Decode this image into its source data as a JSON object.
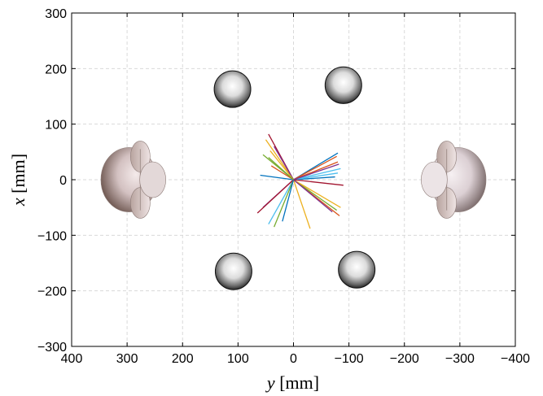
{
  "chart_data": {
    "type": "line",
    "xlabel": {
      "var": "y",
      "unit": " [mm]"
    },
    "ylabel": {
      "var": "x",
      "unit": " [mm]"
    },
    "xlim": [
      400,
      -400
    ],
    "ylim": [
      -300,
      300
    ],
    "x_reversed": true,
    "xticks": [
      400,
      300,
      200,
      100,
      0,
      -100,
      -200,
      -300,
      -400
    ],
    "xtick_labels": [
      "400",
      "300",
      "200",
      "100",
      "0",
      "−100",
      "−200",
      "−300",
      "−400"
    ],
    "yticks": [
      300,
      200,
      100,
      0,
      -100,
      -200,
      -300
    ],
    "ytick_labels": [
      "300",
      "200",
      "100",
      "0",
      "−100",
      "−200",
      "−300"
    ],
    "grid": true,
    "grid_style": "dashed",
    "spheres": [
      {
        "y": 110,
        "x": 163,
        "r": 33
      },
      {
        "y": -90,
        "x": 170,
        "r": 33
      },
      {
        "y": 108,
        "x": -165,
        "r": 33
      },
      {
        "y": -114,
        "x": -162,
        "r": 33
      }
    ],
    "heads": [
      {
        "name": "left-head",
        "center_y": 285,
        "center_x": 0,
        "facing": "right"
      },
      {
        "name": "right-head",
        "center_y": -285,
        "center_x": 0,
        "facing": "left"
      }
    ],
    "series_origin": {
      "y": 0,
      "x": 0
    },
    "series": [
      {
        "color": "#d95319",
        "y": -83,
        "x": -65
      },
      {
        "color": "#0072bd",
        "y": -80,
        "x": 48
      },
      {
        "color": "#edb120",
        "y": 50,
        "x": 72
      },
      {
        "color": "#7e2f8e",
        "y": 55,
        "x": -50
      },
      {
        "color": "#77ac30",
        "y": -78,
        "x": -55
      },
      {
        "color": "#4dbeee",
        "y": -85,
        "x": 20
      },
      {
        "color": "#a2142f",
        "y": 45,
        "x": 82
      },
      {
        "color": "#0072bd",
        "y": 60,
        "x": 8
      },
      {
        "color": "#d95319",
        "y": -80,
        "x": 32
      },
      {
        "color": "#edb120",
        "y": -30,
        "x": -88
      },
      {
        "color": "#7e2f8e",
        "y": 35,
        "x": 60
      },
      {
        "color": "#77ac30",
        "y": 55,
        "x": 45
      },
      {
        "color": "#4dbeee",
        "y": 45,
        "x": -80
      },
      {
        "color": "#a2142f",
        "y": 65,
        "x": -60
      },
      {
        "color": "#0072bd",
        "y": -75,
        "x": 5
      },
      {
        "color": "#d95319",
        "y": 40,
        "x": 25
      },
      {
        "color": "#edb120",
        "y": -85,
        "x": -50
      },
      {
        "color": "#7e2f8e",
        "y": -70,
        "x": -58
      },
      {
        "color": "#77ac30",
        "y": 35,
        "x": -85
      },
      {
        "color": "#4dbeee",
        "y": -80,
        "x": 12
      },
      {
        "color": "#a2142f",
        "y": -90,
        "x": -10
      },
      {
        "color": "#0072bd",
        "y": 20,
        "x": -75
      },
      {
        "color": "#d95319",
        "y": -78,
        "x": 42
      },
      {
        "color": "#edb120",
        "y": 42,
        "x": 52
      },
      {
        "color": "#7e2f8e",
        "y": -82,
        "x": 28
      },
      {
        "color": "#77ac30",
        "y": 45,
        "x": 40
      }
    ]
  }
}
